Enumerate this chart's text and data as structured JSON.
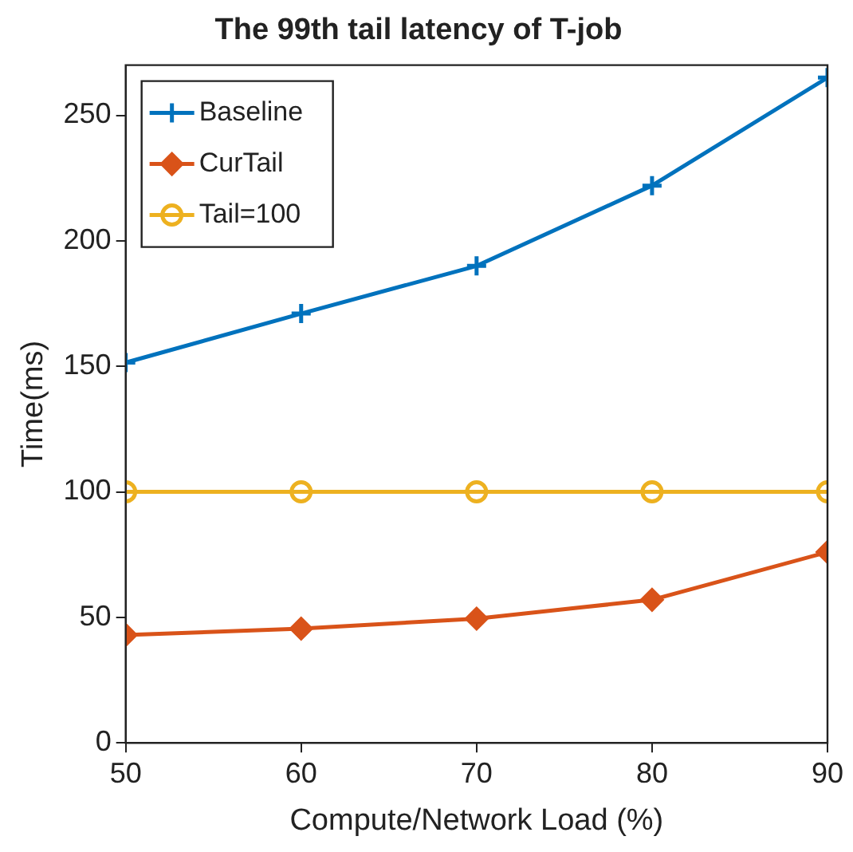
{
  "chart_data": {
    "type": "line",
    "title": "The 99th tail latency of T-job",
    "xlabel": "Compute/Network Load (%)",
    "ylabel": "Time(ms)",
    "x": [
      50,
      60,
      70,
      80,
      90
    ],
    "series": [
      {
        "name": "Baseline",
        "color": "#0072bd",
        "marker": "cross",
        "values": [
          151.5,
          171,
          190,
          222,
          265
        ]
      },
      {
        "name": "CurTail",
        "color": "#d95319",
        "marker": "diamond",
        "values": [
          43,
          45.5,
          49.5,
          57,
          76
        ]
      },
      {
        "name": "Tail=100",
        "color": "#edb120",
        "marker": "circle",
        "values": [
          100,
          100,
          100,
          100,
          100
        ]
      }
    ],
    "xlim": [
      50,
      90
    ],
    "xticks": [
      50,
      60,
      70,
      80,
      90
    ],
    "ylim": [
      0,
      270
    ],
    "yticks": [
      0,
      50,
      100,
      150,
      200,
      250
    ],
    "grid": false,
    "legend": "top left",
    "line_style": "solid"
  }
}
